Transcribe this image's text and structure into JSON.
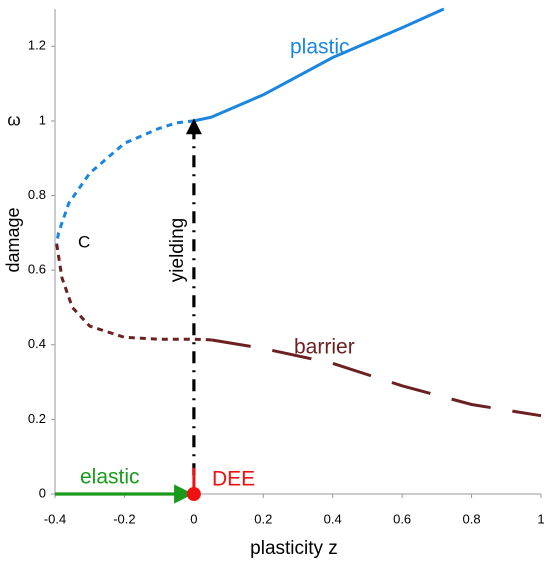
{
  "chart_data": {
    "type": "line",
    "xlabel": "plasticity  z",
    "ylabel": "damage",
    "ysymbol": "ω",
    "xlim": [
      -0.4,
      1
    ],
    "xticks": [
      -0.4,
      -0.2,
      0,
      0.2,
      0.4,
      0.6,
      0.8,
      1
    ],
    "ylim": [
      0,
      1.3
    ],
    "yticks": [
      0,
      0.2,
      0.4,
      0.6,
      0.8,
      1,
      1.2
    ],
    "grid": false,
    "annotations": [
      "plastic",
      "C",
      "yielding",
      "barrier",
      "elastic",
      "DEE"
    ],
    "series": [
      {
        "color": "#1a86e0",
        "dash": "none",
        "x": [
          0,
          0.05,
          0.1,
          0.2,
          0.3,
          0.4,
          0.5,
          0.6,
          0.72
        ],
        "values": [
          1,
          1.01,
          1.03,
          1.07,
          1.12,
          1.17,
          1.21,
          1.25,
          1.3
        ]
      },
      {
        "color": "#1a86e0",
        "dash": "6,5",
        "x": [
          0,
          -0.05,
          -0.1,
          -0.2,
          -0.3,
          -0.36,
          -0.39,
          -0.395
        ],
        "values": [
          1,
          0.995,
          0.98,
          0.94,
          0.86,
          0.78,
          0.7,
          0.67
        ]
      },
      {
        "color": "#6b2121",
        "dash": "6,5",
        "x": [
          -0.395,
          -0.38,
          -0.35,
          -0.3,
          -0.2,
          -0.1,
          0,
          0.05
        ],
        "values": [
          0.67,
          0.58,
          0.5,
          0.45,
          0.42,
          0.415,
          0.415,
          0.413
        ]
      },
      {
        "color": "#6b2121",
        "dash": "40,22",
        "x": [
          0.05,
          0.2,
          0.4,
          0.6,
          0.8,
          1
        ],
        "values": [
          0.413,
          0.39,
          0.35,
          0.29,
          0.24,
          0.21
        ]
      },
      {
        "color": "#1a9a1a",
        "dash": "none",
        "arrow": true,
        "x": [
          -0.4,
          -0.02
        ],
        "values": [
          0,
          0
        ]
      },
      {
        "color": "#000000",
        "dash": "12,7,2,7",
        "arrow": true,
        "x": [
          0,
          0
        ],
        "values": [
          0.05,
          0.99
        ]
      },
      {
        "color": "#ee1111",
        "dash": "none",
        "x": [
          0,
          0
        ],
        "values": [
          0,
          0.07
        ]
      },
      {
        "color": "#ee1111",
        "dash": "none",
        "dot": true,
        "x": [
          0
        ],
        "values": [
          0
        ]
      }
    ]
  }
}
